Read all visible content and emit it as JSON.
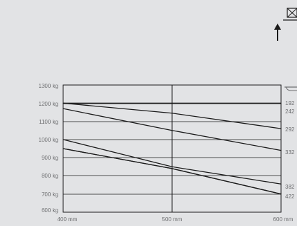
{
  "chart_data": {
    "type": "line",
    "x": [
      400,
      500,
      600
    ],
    "x_tick_labels": [
      "400 mm",
      "500 mm",
      "600 mm"
    ],
    "xlim": [
      400,
      600
    ],
    "y_tick_labels": [
      "1300 kg",
      "1200 kg",
      "1100 kg",
      "1000 kg",
      "900 kg",
      "800 kg",
      "700 kg",
      "600 kg"
    ],
    "ylim": [
      600,
      1300
    ],
    "grid": true,
    "series": [
      {
        "name": "192",
        "values": [
          1200,
          1200,
          1200
        ]
      },
      {
        "name": "242",
        "values": [
          1200,
          1145,
          1060
        ]
      },
      {
        "name": "292",
        "values": [
          1170,
          1050,
          940
        ]
      },
      {
        "name": "332",
        "values": [
          1000,
          850,
          755
        ]
      },
      {
        "name": "382",
        "values": [
          950,
          840,
          700
        ]
      },
      {
        "name": "422",
        "values": [
          950,
          840,
          700
        ]
      }
    ]
  },
  "icons": {
    "pallet_box": "pallet-box-icon",
    "lift_arrow": "lift-arrow-icon",
    "fork": "fork-icon"
  }
}
